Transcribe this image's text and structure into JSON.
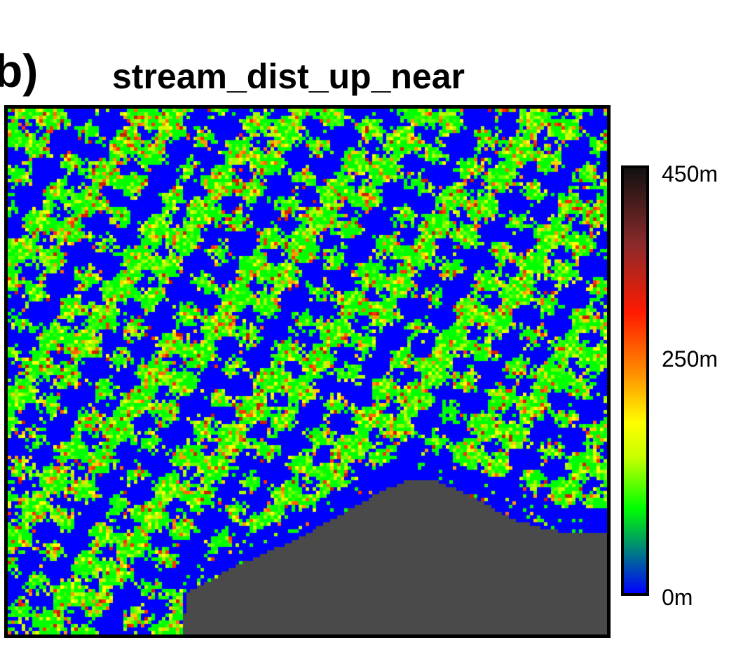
{
  "figure": {
    "panel_letter": "b)",
    "title": "stream_dist_up_near"
  },
  "colorbar": {
    "max_label": "450m",
    "mid_label": "250m",
    "min_label": "0m",
    "min_value": 0,
    "mid_value": 250,
    "max_value": 450,
    "units": "m",
    "colors": [
      "#0000ff",
      "#00ff00",
      "#c8ff00",
      "#ffff00",
      "#ff8c00",
      "#ff1a00",
      "#8b2a2a",
      "#111111"
    ]
  },
  "map": {
    "nodata_color": "#4a4a4a",
    "stream_color": "#0000ff"
  }
}
